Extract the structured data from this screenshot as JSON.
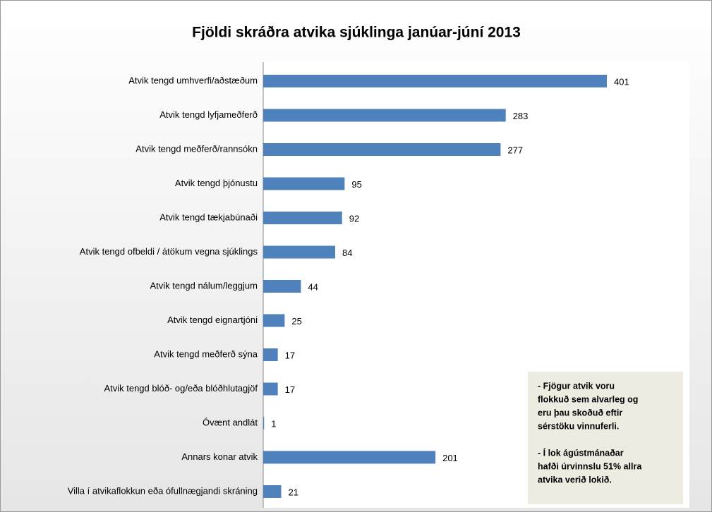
{
  "chart_data": {
    "type": "bar",
    "orientation": "horizontal",
    "title": "Fjöldi skráðra atvika sjúklinga janúar-júní 2013",
    "categories": [
      "Atvik tengd umhverfi/aðstæðum",
      "Atvik tengd lyfjameðferð",
      "Atvik tengd meðferð/rannsókn",
      "Atvik tengd þjónustu",
      "Atvik tengd tækjabúnaði",
      "Atvik tengd ofbeldi / átökum vegna sjúklings",
      "Atvik tengd nálum/leggjum",
      "Atvik tengd eignartjóni",
      "Atvik tengd meðferð sýna",
      "Atvik tengd blóð- og/eða blóðhlutagjöf",
      "Óvænt andlát",
      "Annars konar atvik",
      "Villa í atvikaflokkun eða ófullnægjandi skráning"
    ],
    "values": [
      401,
      283,
      277,
      95,
      92,
      84,
      44,
      25,
      17,
      17,
      1,
      201,
      21
    ],
    "color": "#4f81bd",
    "annotation": [
      [
        "- Fjögur atvik voru",
        "flokkuð sem alvarleg og",
        "eru þau skoðuð eftir",
        "sérstöku vinnuferli."
      ],
      [
        "- Í lok ágústmánaðar",
        "hafði úrvinnslu 51% allra",
        "atvika verið lokið."
      ]
    ]
  }
}
